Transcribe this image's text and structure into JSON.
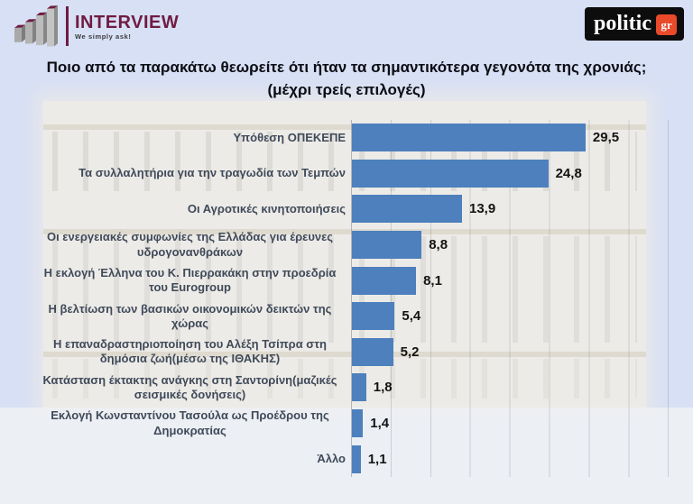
{
  "header": {
    "interview": {
      "name": "INTERVIEW",
      "tagline": "We simply ask!",
      "icon": "ascending-3d-bars-icon",
      "brand_color": "#701b42"
    },
    "politic": {
      "name": "politic",
      "suffix": "gr",
      "box_color": "#0d0d0d",
      "badge_color": "#e84a2a"
    }
  },
  "title": {
    "line1": "Ποιο από τα παρακάτω θεωρείτε ότι ήταν τα σημαντικότερα γεγονότα της χρονιάς;",
    "line2": "(μέχρι τρείς επιλογές)"
  },
  "chart_data": {
    "type": "bar",
    "orientation": "horizontal",
    "title": "Ποιο από τα παρακάτω θεωρείτε ότι ήταν τα σημαντικότερα γεγονότα της χρονιάς; (μέχρι τρείς επιλογές)",
    "categories": [
      "Υπόθεση ΟΠΕΚΕΠΕ",
      "Τα συλλαλητήρια για την τραγωδία των Τεμπών",
      "Οι Αγροτικές κινητοποιήσεις",
      "Οι ενεργειακές συμφωνίες της Ελλάδας για έρευνες υδρογονανθράκων",
      "Η εκλογή Έλληνα του Κ. Πιερρακάκη στην προεδρία του Eurogroup",
      "Η βελτίωση των βασικών οικονομικών δεικτών της χώρας",
      "Η επαναδραστηριοποίηση του Αλέξη Τσίπρα στη δημόσια ζωή(μέσω της ΙΘΑΚΗΣ)",
      "Κατάσταση έκτακτης ανάγκης στη Σαντορίνη(μαζικές σεισμικές δονήσεις)",
      "Εκλογή Κωνσταντίνου Τασούλα ως Προέδρου της Δημοκρατίας",
      "Άλλο"
    ],
    "values": [
      29.5,
      24.8,
      13.9,
      8.8,
      8.1,
      5.4,
      5.2,
      1.8,
      1.4,
      1.1
    ],
    "value_labels": [
      "29,5",
      "24,8",
      "13,9",
      "8,8",
      "8,1",
      "5,4",
      "5,2",
      "1,8",
      "1,4",
      "1,1"
    ],
    "xlabel": "",
    "ylabel": "",
    "xlim": [
      0,
      40
    ],
    "gridline_interval": 5,
    "grid": true,
    "bar_color": "#4d80bd",
    "label_color": "#3f4a5a",
    "value_label_position": "outside-end",
    "legend": "none"
  }
}
